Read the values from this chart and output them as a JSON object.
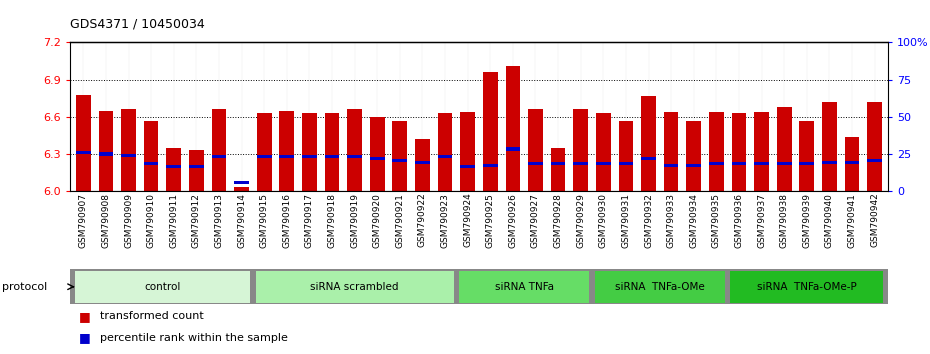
{
  "title": "GDS4371 / 10450034",
  "samples": [
    "GSM790907",
    "GSM790908",
    "GSM790909",
    "GSM790910",
    "GSM790911",
    "GSM790912",
    "GSM790913",
    "GSM790914",
    "GSM790915",
    "GSM790916",
    "GSM790917",
    "GSM790918",
    "GSM790919",
    "GSM790920",
    "GSM790921",
    "GSM790922",
    "GSM790923",
    "GSM790924",
    "GSM790925",
    "GSM790926",
    "GSM790927",
    "GSM790928",
    "GSM790929",
    "GSM790930",
    "GSM790931",
    "GSM790932",
    "GSM790933",
    "GSM790934",
    "GSM790935",
    "GSM790936",
    "GSM790937",
    "GSM790938",
    "GSM790939",
    "GSM790940",
    "GSM790941",
    "GSM790942"
  ],
  "red_values": [
    6.78,
    6.65,
    6.66,
    6.57,
    6.35,
    6.33,
    6.66,
    6.03,
    6.63,
    6.65,
    6.63,
    6.63,
    6.66,
    6.6,
    6.57,
    6.42,
    6.63,
    6.64,
    6.96,
    7.01,
    6.66,
    6.35,
    6.66,
    6.63,
    6.57,
    6.77,
    6.64,
    6.57,
    6.64,
    6.63,
    6.64,
    6.68,
    6.57,
    6.72,
    6.44,
    6.72
  ],
  "blue_values": [
    6.31,
    6.3,
    6.29,
    6.22,
    6.2,
    6.2,
    6.28,
    6.07,
    6.28,
    6.28,
    6.28,
    6.28,
    6.28,
    6.26,
    6.25,
    6.23,
    6.28,
    6.2,
    6.21,
    6.34,
    6.22,
    6.22,
    6.22,
    6.22,
    6.22,
    6.26,
    6.21,
    6.21,
    6.22,
    6.22,
    6.22,
    6.22,
    6.22,
    6.23,
    6.23,
    6.25
  ],
  "groups": [
    {
      "label": "control",
      "start": 0,
      "end": 8,
      "color": "#d6f5d6"
    },
    {
      "label": "siRNA scrambled",
      "start": 8,
      "end": 17,
      "color": "#aaf0aa"
    },
    {
      "label": "siRNA TNFa",
      "start": 17,
      "end": 23,
      "color": "#66dd66"
    },
    {
      "label": "siRNA  TNFa-OMe",
      "start": 23,
      "end": 29,
      "color": "#44cc44"
    },
    {
      "label": "siRNA  TNFa-OMe-P",
      "start": 29,
      "end": 36,
      "color": "#22bb22"
    }
  ],
  "ylim_left": [
    6.0,
    7.2
  ],
  "ylim_right": [
    0,
    100
  ],
  "yticks_left": [
    6.0,
    6.3,
    6.6,
    6.9,
    7.2
  ],
  "yticks_right": [
    0,
    25,
    50,
    75,
    100
  ],
  "bar_color": "#cc0000",
  "blue_color": "#0000cc",
  "bar_width": 0.65
}
